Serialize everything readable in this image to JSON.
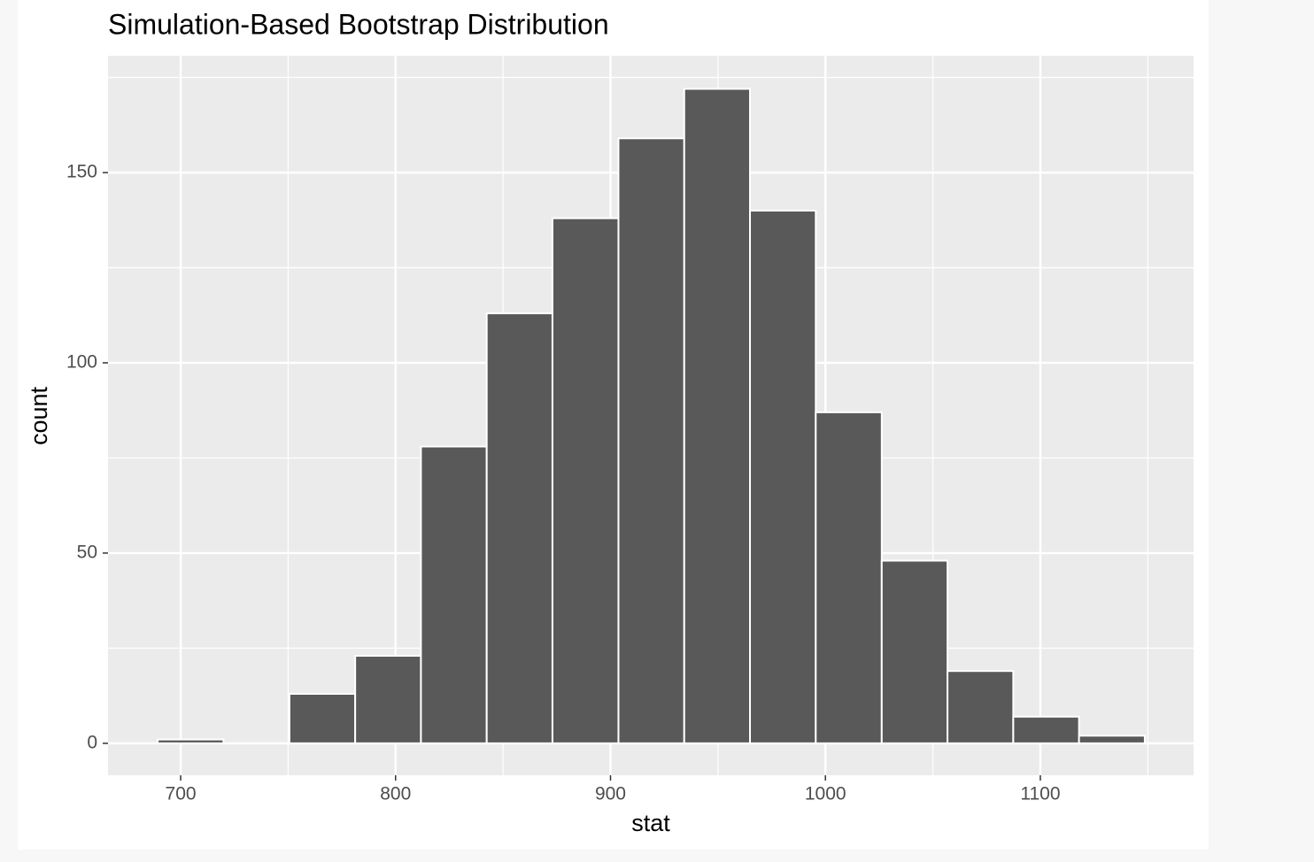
{
  "chart_data": {
    "type": "histogram",
    "title": "Simulation-Based Bootstrap Distribution",
    "x_label": "stat",
    "y_label": "count",
    "bins": [
      689.3,
      719.9,
      750.6,
      781.2,
      811.8,
      842.4,
      873.0,
      903.7,
      934.3,
      964.9,
      995.5,
      1026.2,
      1056.8,
      1087.4,
      1118.0,
      1148.6
    ],
    "counts": [
      1,
      0,
      13,
      23,
      78,
      113,
      138,
      159,
      172,
      140,
      87,
      48,
      19,
      7,
      2
    ],
    "color": "#595959",
    "edge_color": "#ffffff",
    "panel_color": "#ebebeb",
    "xlim": [
      666.2,
      1171.3
    ],
    "xticks": [
      700,
      800,
      900,
      1000,
      1100
    ],
    "x_minor_grid": [
      750,
      850,
      950,
      1050,
      1150
    ],
    "ylim": [
      -8.4,
      180.7
    ],
    "yticks": [
      0,
      50,
      100,
      150
    ],
    "y_minor_grid": [
      25,
      75,
      125,
      175
    ],
    "grid": true
  }
}
